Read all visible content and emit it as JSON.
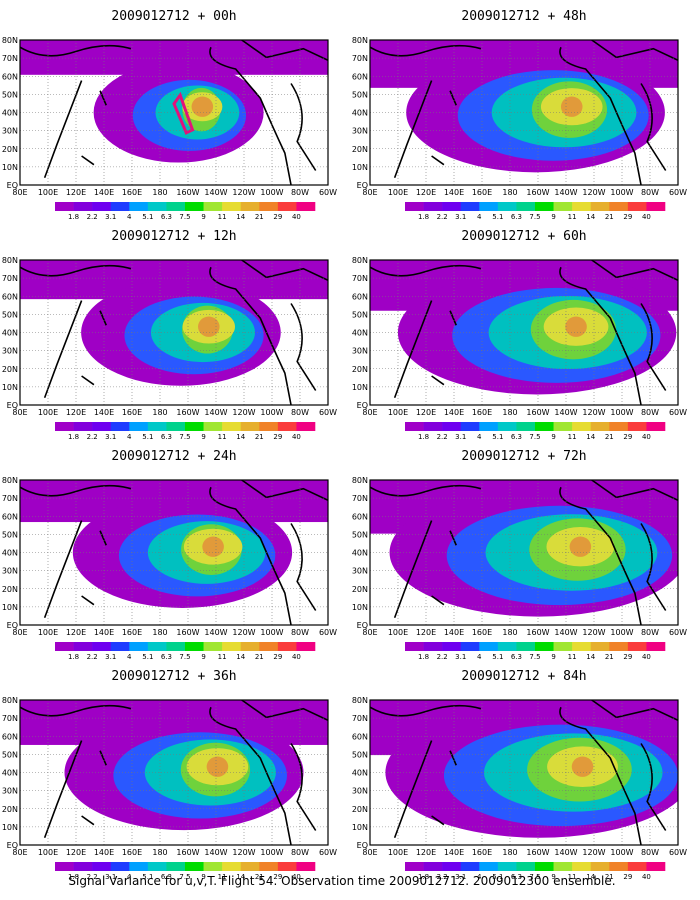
{
  "caption": "Signal Variance for u,v,T. Flight 54. Observation time 2009012712. 2009012300 ensemble.",
  "panels": [
    {
      "title": "2009012712 + 00h",
      "lead": 0,
      "intensity": 0.25,
      "spread": 0.3
    },
    {
      "title": "2009012712 + 12h",
      "lead": 12,
      "intensity": 0.45,
      "spread": 0.45
    },
    {
      "title": "2009012712 + 24h",
      "lead": 24,
      "intensity": 0.55,
      "spread": 0.55
    },
    {
      "title": "2009012712 + 36h",
      "lead": 36,
      "intensity": 0.6,
      "spread": 0.65
    },
    {
      "title": "2009012712 + 48h",
      "lead": 48,
      "intensity": 0.6,
      "spread": 0.75
    },
    {
      "title": "2009012712 + 60h",
      "lead": 60,
      "intensity": 0.65,
      "spread": 0.85
    },
    {
      "title": "2009012712 + 72h",
      "lead": 72,
      "intensity": 0.7,
      "spread": 0.95
    },
    {
      "title": "2009012712 + 84h",
      "lead": 84,
      "intensity": 0.75,
      "spread": 1.0
    }
  ],
  "lon_ticks": [
    "80E",
    "100E",
    "120E",
    "140E",
    "160E",
    "180",
    "160W",
    "140W",
    "120W",
    "100W",
    "80W",
    "60W"
  ],
  "lat_ticks": [
    "80N",
    "70N",
    "60N",
    "50N",
    "40N",
    "30N",
    "20N",
    "10N",
    "EQ"
  ],
  "colorbar": {
    "labels": [
      "1.8",
      "2.2",
      "3.1",
      "4",
      "5.1",
      "6.3",
      "7.5",
      "9",
      "11",
      "14",
      "21",
      "29",
      "40"
    ],
    "colors": [
      "#a000c8",
      "#8200dc",
      "#6e00f0",
      "#1e3cff",
      "#00a0ff",
      "#00c8c8",
      "#00d28c",
      "#00dc00",
      "#a0e632",
      "#e6dc32",
      "#e6af2d",
      "#f08228",
      "#fa3c3c",
      "#f00082"
    ]
  },
  "fill_colors": {
    "white": "#ffffff",
    "purple": "#9f00c5",
    "blue": "#2a58ff",
    "cyan": "#00c0c0",
    "green": "#6fd23c",
    "yellow": "#d9dc3a",
    "orange": "#e19a3a",
    "red": "#f03a5a",
    "magenta": "#e2127b"
  }
}
